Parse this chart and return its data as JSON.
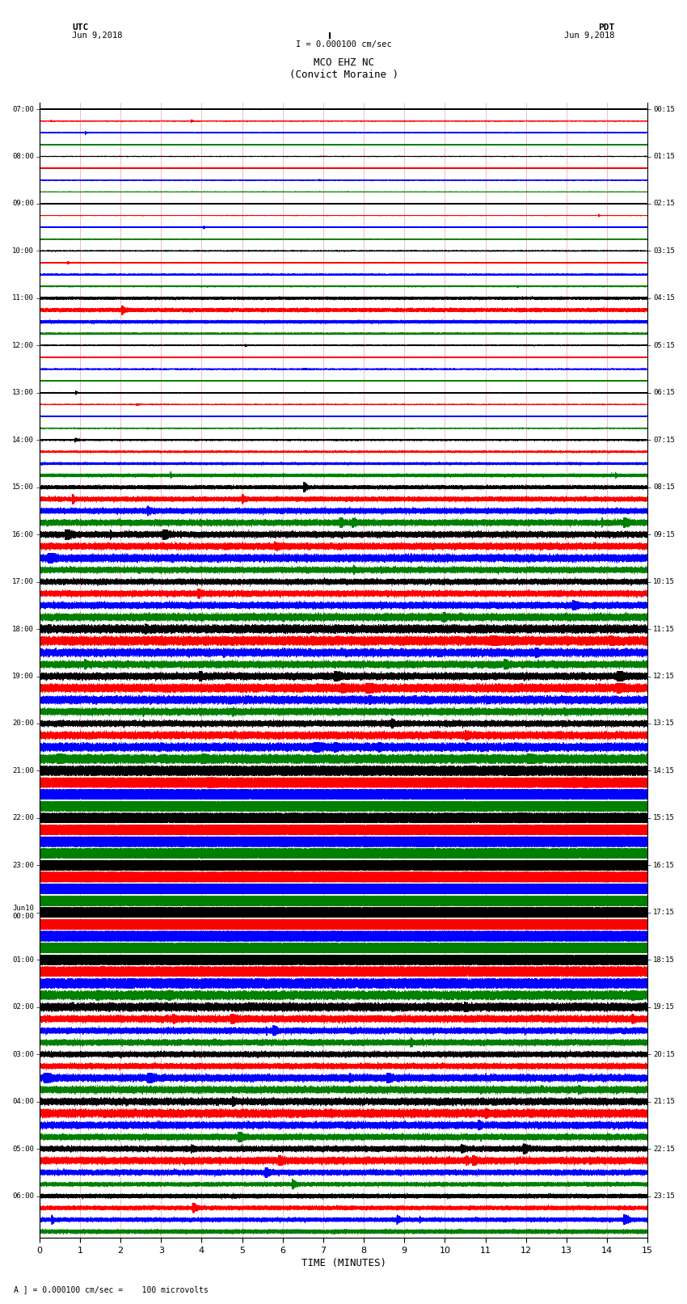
{
  "title_line1": "MCO EHZ NC",
  "title_line2": "(Convict Moraine )",
  "scale_text": "I = 0.000100 cm/sec",
  "left_label_top": "UTC",
  "left_label_date": "Jun 9,2018",
  "right_label_top": "PDT",
  "right_label_date": "Jun 9,2018",
  "bottom_label": "TIME (MINUTES)",
  "bottom_note": "A ] = 0.000100 cm/sec =    100 microvolts",
  "utc_times": [
    "07:00",
    "08:00",
    "09:00",
    "10:00",
    "11:00",
    "12:00",
    "13:00",
    "14:00",
    "15:00",
    "16:00",
    "17:00",
    "18:00",
    "19:00",
    "20:00",
    "21:00",
    "22:00",
    "23:00",
    "Jun10\n00:00",
    "01:00",
    "02:00",
    "03:00",
    "04:00",
    "05:00",
    "06:00"
  ],
  "pdt_times": [
    "00:15",
    "01:15",
    "02:15",
    "03:15",
    "04:15",
    "05:15",
    "06:15",
    "07:15",
    "08:15",
    "09:15",
    "10:15",
    "11:15",
    "12:15",
    "13:15",
    "14:15",
    "15:15",
    "16:15",
    "17:15",
    "18:15",
    "19:15",
    "20:15",
    "21:15",
    "22:15",
    "23:15"
  ],
  "colors": [
    "black",
    "red",
    "blue",
    "green"
  ],
  "n_hours": 24,
  "traces_per_hour": 4,
  "minutes": 15,
  "sample_rate": 100,
  "fig_width": 8.5,
  "fig_height": 16.13,
  "bg_color": "white",
  "activity": [
    0.12,
    0.1,
    0.12,
    0.08,
    0.1,
    0.09,
    0.1,
    0.08,
    0.09,
    0.09,
    0.1,
    0.09,
    0.12,
    0.15,
    0.18,
    0.15,
    0.3,
    0.4,
    0.35,
    0.2,
    0.12,
    0.11,
    0.14,
    0.12,
    0.11,
    0.11,
    0.13,
    0.12,
    0.18,
    0.22,
    0.28,
    0.35,
    0.4,
    0.5,
    0.6,
    0.65,
    0.65,
    0.7,
    0.8,
    0.65,
    0.6,
    0.65,
    0.7,
    0.8,
    0.9,
    1.0,
    0.85,
    0.75,
    0.75,
    0.9,
    0.85,
    0.75,
    0.65,
    0.8,
    0.9,
    1.0,
    1.2,
    1.4,
    1.5,
    1.5,
    1.4,
    1.5,
    1.6,
    1.5,
    1.6,
    1.8,
    2.0,
    1.8,
    1.8,
    2.0,
    1.8,
    1.6,
    1.5,
    1.35,
    1.2,
    1.0,
    0.9,
    0.75,
    0.65,
    0.65,
    0.6,
    0.6,
    0.75,
    0.75,
    0.75,
    0.9,
    0.75,
    0.65,
    0.6,
    0.75,
    0.6,
    0.45,
    0.45,
    0.45,
    0.45,
    0.45
  ]
}
